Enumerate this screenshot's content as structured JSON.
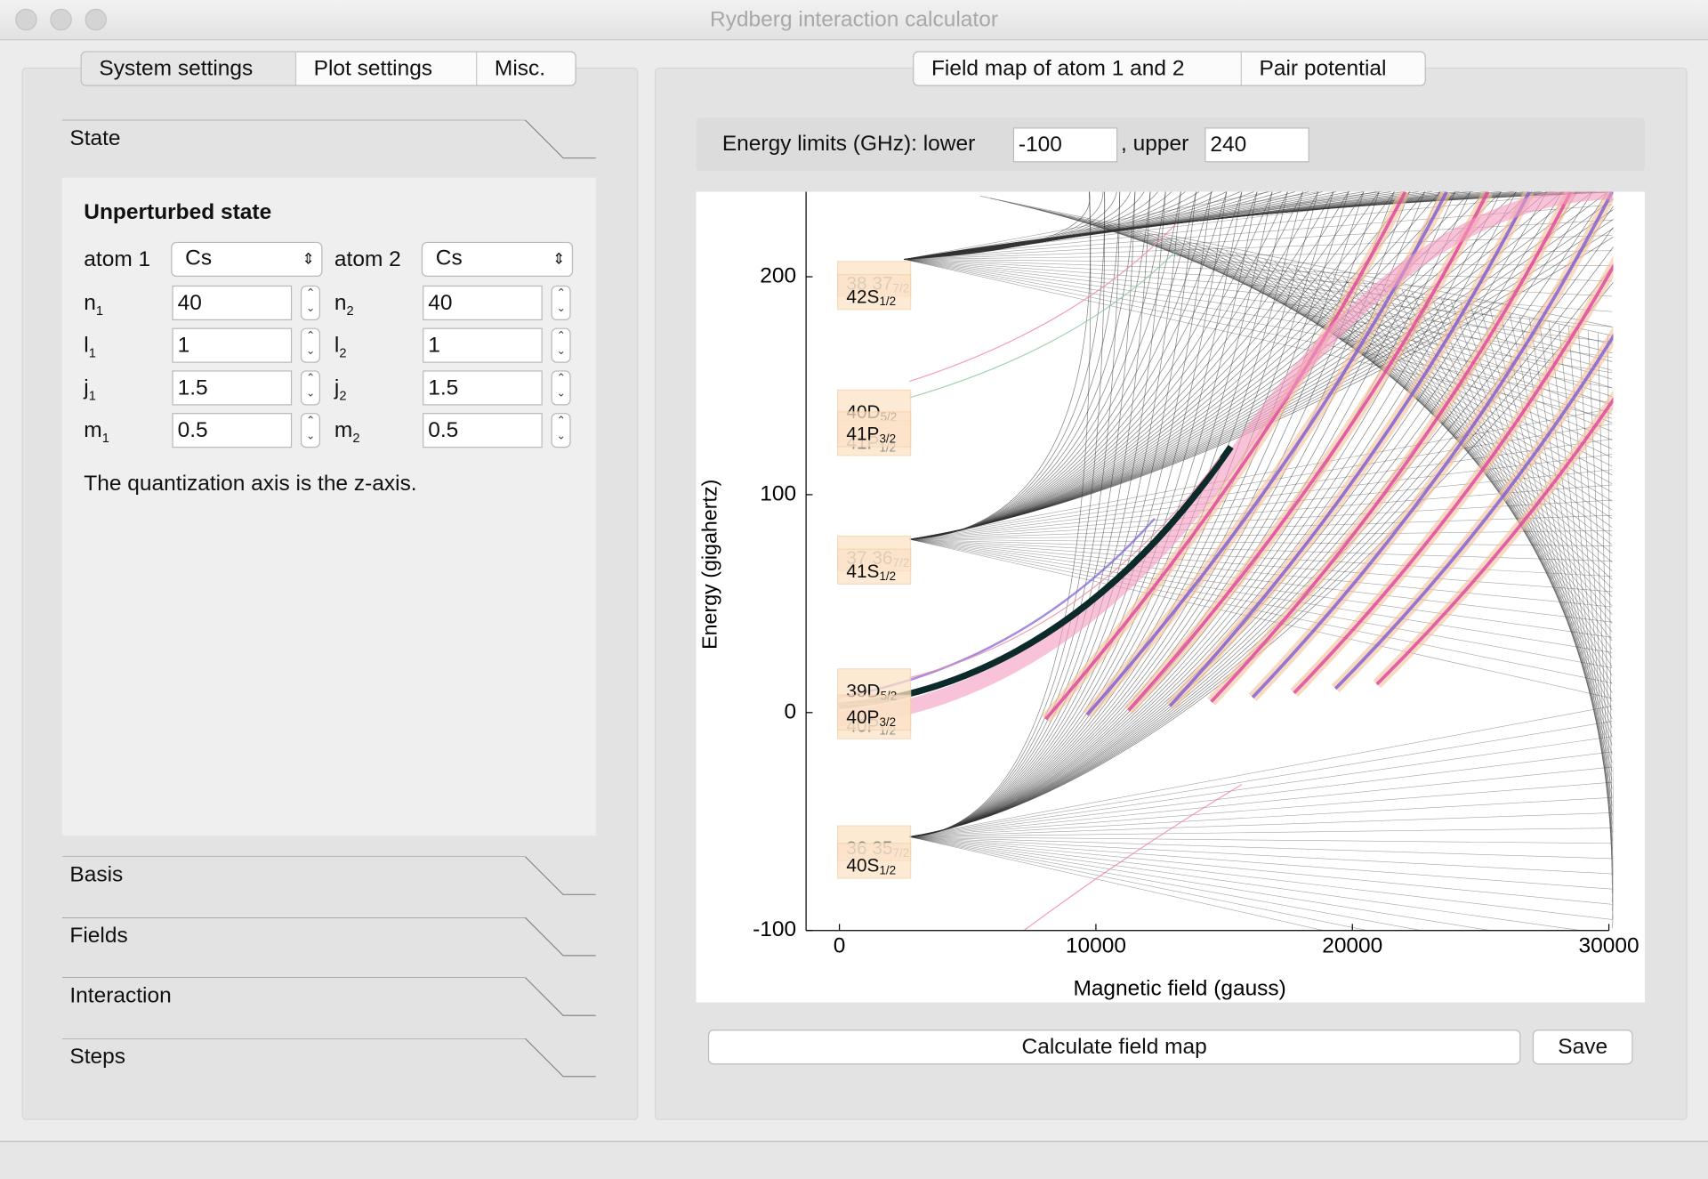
{
  "window": {
    "title": "Rydberg interaction calculator"
  },
  "left_tabs": [
    "System settings",
    "Plot settings",
    "Misc."
  ],
  "sections": [
    "State",
    "Basis",
    "Fields",
    "Interaction",
    "Steps"
  ],
  "state": {
    "heading": "Unperturbed state",
    "atom1_label": "atom 1",
    "atom1": "Cs",
    "atom2_label": "atom 2",
    "atom2": "Cs",
    "rows": [
      {
        "label1": "n",
        "sub1": "1",
        "value1": "40",
        "label2": "n",
        "sub2": "2",
        "value2": "40"
      },
      {
        "label1": "l",
        "sub1": "1",
        "value1": "1",
        "label2": "l",
        "sub2": "2",
        "value2": "1"
      },
      {
        "label1": "j",
        "sub1": "1",
        "value1": "1.5",
        "label2": "j",
        "sub2": "2",
        "value2": "1.5"
      },
      {
        "label1": "m",
        "sub1": "1",
        "value1": "0.5",
        "label2": "m",
        "sub2": "2",
        "value2": "0.5"
      }
    ],
    "note": "The quantization axis is the z-axis."
  },
  "right_tabs": [
    "Field map of atom 1 and 2",
    "Pair potential"
  ],
  "energy_limits": {
    "label": "Energy limits (GHz): lower",
    "lower": "-100",
    "upper_label": ", upper",
    "upper": "240"
  },
  "chart_data": {
    "type": "line",
    "xlabel": "Magnetic field (gauss)",
    "ylabel": "Energy (gigahertz)",
    "xlim": [
      -1300,
      30000
    ],
    "ylim": [
      -100,
      240
    ],
    "xticks": [
      0,
      10000,
      20000,
      30000
    ],
    "yticks": [
      -100,
      0,
      100,
      200
    ],
    "annotations": [
      {
        "text": "38 37",
        "sub": "7/2",
        "y": 199,
        "faded": true
      },
      {
        "text": "42S",
        "sub": "1/2",
        "y": 193,
        "faded": false
      },
      {
        "text": "40D",
        "sub": "5/2",
        "y": 140,
        "faded": false
      },
      {
        "text": "41P",
        "sub": "1/2",
        "y": 126,
        "faded": true
      },
      {
        "text": "41P",
        "sub": "3/2",
        "y": 130,
        "faded": false
      },
      {
        "text": "37 36",
        "sub": "7/2",
        "y": 73,
        "faded": true
      },
      {
        "text": "41S",
        "sub": "1/2",
        "y": 67,
        "faded": false
      },
      {
        "text": "39D",
        "sub": "5/2",
        "y": 12,
        "faded": false
      },
      {
        "text": "40P",
        "sub": "1/2",
        "y": -4,
        "faded": true
      },
      {
        "text": "40P",
        "sub": "3/2",
        "y": 0,
        "faded": false
      },
      {
        "text": "36 35",
        "sub": "7/2",
        "y": -60,
        "faded": true
      },
      {
        "text": "40S",
        "sub": "1/2",
        "y": -68,
        "faded": false
      }
    ]
  },
  "buttons": [
    "Calculate field map",
    "Save"
  ]
}
